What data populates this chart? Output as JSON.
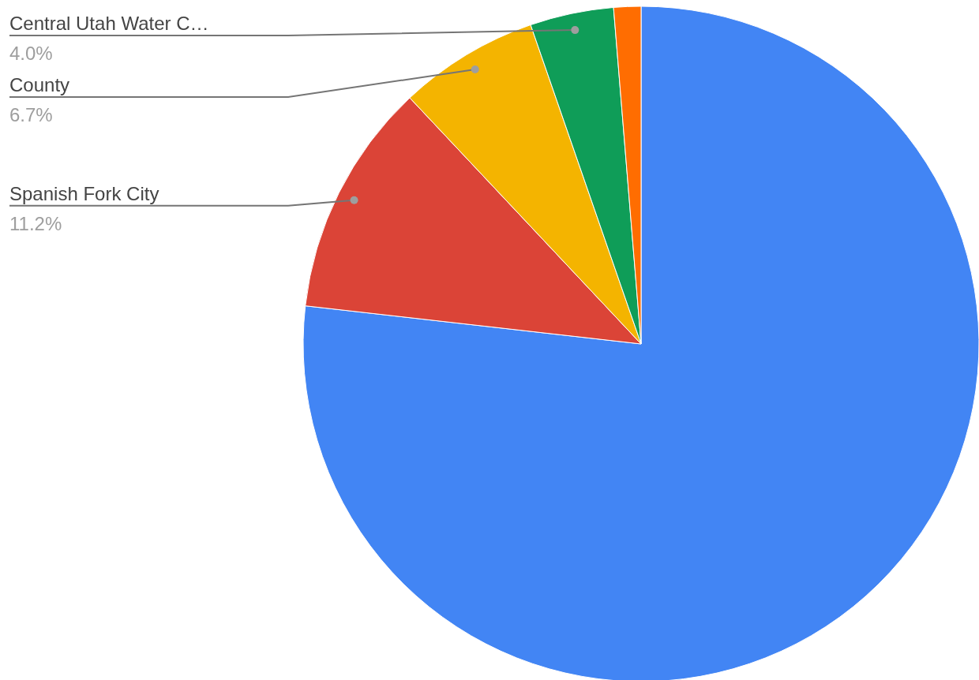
{
  "chart_data": {
    "type": "pie",
    "categories": [
      null,
      "Spanish Fork City",
      "County",
      "Central Utah Water C…",
      null
    ],
    "values": [
      76.8,
      11.2,
      6.7,
      4.0,
      1.3
    ],
    "colors": [
      "#4285f4",
      "#db4437",
      "#f4b400",
      "#0f9d58",
      "#ff6d01"
    ],
    "value_labels": [
      null,
      "11.2%",
      "6.7%",
      "4.0%",
      null
    ],
    "legend": false
  }
}
